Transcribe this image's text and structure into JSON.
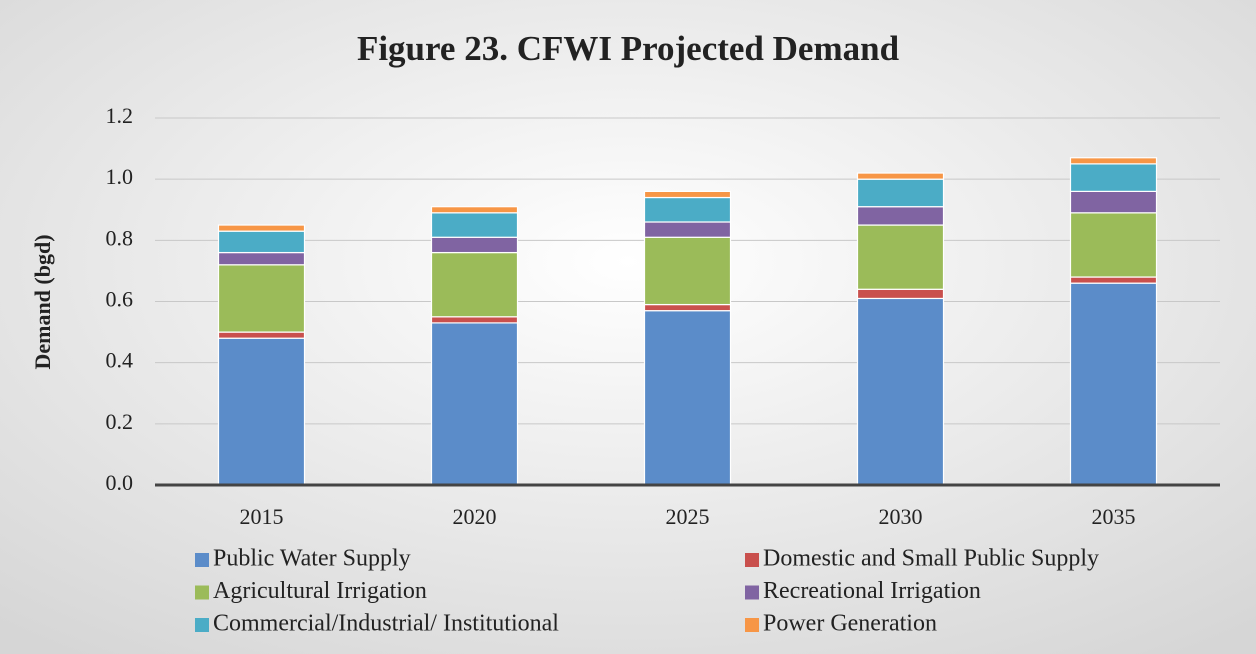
{
  "chart_data": {
    "type": "stacked_bar",
    "title": "Figure 23. CFWI Projected Demand",
    "y_label": "Demand (bgd)",
    "categories": [
      "2015",
      "2020",
      "2025",
      "2030",
      "2035"
    ],
    "series": [
      {
        "name": "Public Water Supply",
        "color": "#5b8cc9",
        "values": [
          0.48,
          0.53,
          0.57,
          0.61,
          0.66
        ]
      },
      {
        "name": "Domestic and Small Public Supply",
        "color": "#c9504d",
        "values": [
          0.02,
          0.02,
          0.02,
          0.03,
          0.02
        ]
      },
      {
        "name": "Agricultural Irrigation",
        "color": "#9bbb59",
        "values": [
          0.22,
          0.21,
          0.22,
          0.21,
          0.21
        ]
      },
      {
        "name": "Recreational Irrigation",
        "color": "#8064a2",
        "values": [
          0.04,
          0.05,
          0.05,
          0.06,
          0.07
        ]
      },
      {
        "name": "Commercial/Industrial/ Institutional",
        "color": "#4bacc6",
        "values": [
          0.07,
          0.08,
          0.08,
          0.09,
          0.09
        ]
      },
      {
        "name": "Power Generation",
        "color": "#f79646",
        "values": [
          0.02,
          0.02,
          0.02,
          0.02,
          0.02
        ]
      }
    ],
    "ylim": [
      0,
      1.2
    ],
    "yticks": [
      {
        "value": 0,
        "label": "0.0"
      },
      0.2,
      0.4,
      0.6,
      0.8,
      {
        "value": 1,
        "label": "1.0"
      },
      1.2
    ],
    "grid": true
  }
}
